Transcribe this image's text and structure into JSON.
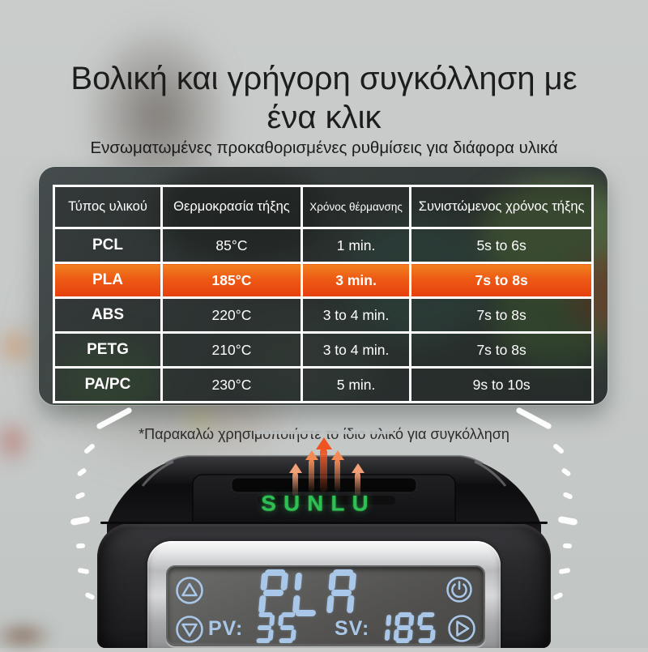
{
  "header": {
    "title_line1": "Βολική και γρήγορη συγκόλληση με",
    "title_line2": "ένα κλικ",
    "subtitle": "Ενσωματωμένες προκαθορισμένες ρυθμίσεις για διάφορα υλικά"
  },
  "table": {
    "headers": [
      "Τύπος υλικού",
      "Θερμοκρασία τήξης",
      "Χρόνος θέρμανσης",
      "Συνιστώμενος χρόνος τήξης"
    ],
    "rows": [
      {
        "material": "PCL",
        "melt_temp": "85°C",
        "heat_time": "1 min.",
        "weld_time": "5s to 6s",
        "highlighted": false
      },
      {
        "material": "PLA",
        "melt_temp": "185°C",
        "heat_time": "3 min.",
        "weld_time": "7s to 8s",
        "highlighted": true
      },
      {
        "material": "ABS",
        "melt_temp": "220°C",
        "heat_time": "3 to 4 min.",
        "weld_time": "7s to 8s",
        "highlighted": false
      },
      {
        "material": "PETG",
        "melt_temp": "210°C",
        "heat_time": "3 to 4 min.",
        "weld_time": "7s to 8s",
        "highlighted": false
      },
      {
        "material": "PA/PC",
        "melt_temp": "230°C",
        "heat_time": "5 min.",
        "weld_time": "9s to 10s",
        "highlighted": false
      }
    ]
  },
  "note": "*Παρακαλώ χρησιμοποιήστε το ίδιο υλικό για συγκόλληση",
  "device": {
    "brand": "SUNLU",
    "screen": {
      "material": "PLA",
      "pv_label": "PV:",
      "pv_value": "35",
      "sv_label": "SV:",
      "sv_value": "185"
    }
  },
  "colors": {
    "highlight_row_top": "#f0811f",
    "highlight_row_bottom": "#e6400e",
    "brand_green": "#2fbf52",
    "lcd_segment_blue": "#a9c7e8",
    "heat_arrow_orange": "#ef5420",
    "table_border": "#fdfdfd"
  }
}
